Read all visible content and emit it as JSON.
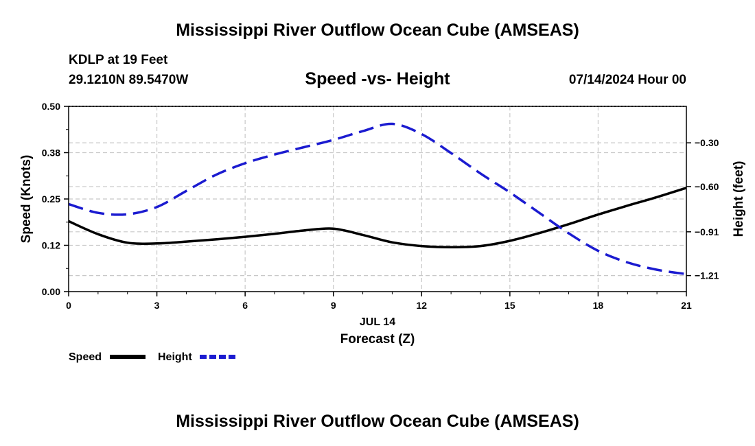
{
  "page": {
    "title_top": "Mississippi River Outflow Ocean Cube (AMSEAS)",
    "title_bottom": "Mississippi River Outflow Ocean Cube (AMSEAS)",
    "station": "KDLP at 19 Feet",
    "coords": "29.1210N  89.5470W",
    "datetime": "07/14/2024 Hour 00"
  },
  "chart_data": {
    "type": "line",
    "title": "Speed -vs- Height",
    "xlabel": "Forecast (Z)",
    "x_date_label": "JUL 14",
    "ylabel_left": "Speed (Knots)",
    "ylabel_right": "Height (feet)",
    "xlim": [
      0,
      21
    ],
    "ylim_left": [
      0,
      0.5
    ],
    "ylim_right": [
      -1.32,
      -0.05
    ],
    "x_ticks": [
      0,
      3,
      6,
      9,
      12,
      15,
      18,
      21
    ],
    "x_tick_labels": [
      "0",
      "3",
      "6",
      "9",
      "12",
      "15",
      "18",
      "21"
    ],
    "y_left_ticks": [
      0,
      0.125,
      0.25,
      0.375,
      0.5
    ],
    "y_left_tick_labels": [
      "0.00",
      "0.12",
      "0.25",
      "0.38",
      "0.50"
    ],
    "y_right_ticks": [
      -0.3,
      -0.6,
      -0.91,
      -1.21
    ],
    "y_right_tick_labels": [
      "−0.30",
      "−0.60",
      "−0.91",
      "−1.21"
    ],
    "grid": true,
    "series": [
      {
        "name": "Speed",
        "axis": "left",
        "color": "#000000",
        "dash": "solid",
        "x": [
          0,
          1,
          2,
          3,
          4,
          5,
          6,
          7,
          8,
          9,
          10,
          11,
          12,
          13,
          14,
          15,
          16,
          17,
          18,
          19,
          20,
          21
        ],
        "values": [
          0.19,
          0.155,
          0.132,
          0.13,
          0.135,
          0.141,
          0.148,
          0.156,
          0.165,
          0.17,
          0.153,
          0.133,
          0.123,
          0.12,
          0.123,
          0.137,
          0.158,
          0.182,
          0.208,
          0.232,
          0.255,
          0.28
        ]
      },
      {
        "name": "Height",
        "axis": "right",
        "color": "#1b1bd0",
        "dash": "dashed",
        "x": [
          0,
          1,
          2,
          3,
          4,
          5,
          6,
          7,
          8,
          9,
          10,
          11,
          12,
          13,
          14,
          15,
          16,
          17,
          18,
          19,
          20,
          21
        ],
        "values": [
          -0.72,
          -0.78,
          -0.79,
          -0.74,
          -0.63,
          -0.52,
          -0.44,
          -0.38,
          -0.33,
          -0.28,
          -0.22,
          -0.17,
          -0.24,
          -0.37,
          -0.51,
          -0.64,
          -0.78,
          -0.92,
          -1.04,
          -1.12,
          -1.17,
          -1.2
        ]
      }
    ],
    "legend": [
      {
        "label": "Speed",
        "color": "#000000",
        "dash": "solid"
      },
      {
        "label": "Height",
        "color": "#1b1bd0",
        "dash": "dashed"
      }
    ]
  }
}
